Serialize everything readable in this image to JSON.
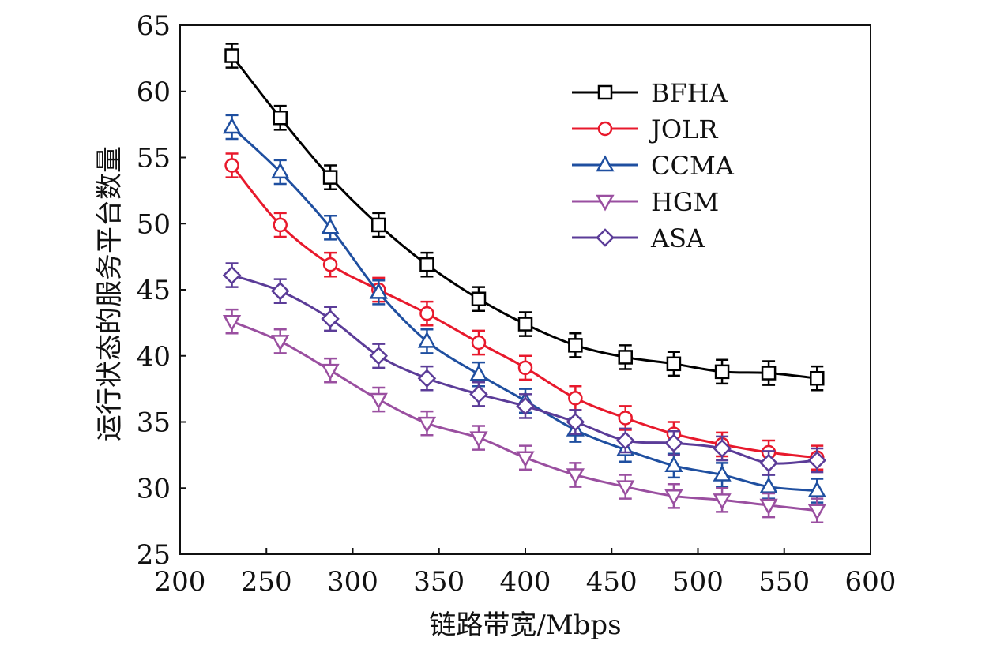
{
  "chart_data": {
    "type": "line",
    "title": "",
    "xlabel": "链路带宽/Mbps",
    "ylabel": "运行状态的服务平台数量",
    "xlim": [
      200,
      600
    ],
    "ylim": [
      25,
      65
    ],
    "xticks": [
      "200",
      "250",
      "300",
      "350",
      "400",
      "450",
      "500",
      "550",
      "600"
    ],
    "yticks": [
      "25",
      "30",
      "35",
      "40",
      "45",
      "50",
      "55",
      "60",
      "65"
    ],
    "grid": false,
    "legend_position": "top-right",
    "x": [
      230,
      258,
      287,
      315,
      343,
      373,
      400,
      429,
      458,
      486,
      514,
      541,
      569
    ],
    "series": [
      {
        "name": "BFHA",
        "color": "#000000",
        "marker": "square",
        "values": [
          62.7,
          58.0,
          53.5,
          49.9,
          46.9,
          44.3,
          42.4,
          40.8,
          39.9,
          39.4,
          38.8,
          38.7,
          38.3
        ],
        "error": [
          0.9,
          0.9,
          0.9,
          0.9,
          0.9,
          0.9,
          0.9,
          0.9,
          0.9,
          0.9,
          0.9,
          0.9,
          0.9
        ]
      },
      {
        "name": "JOLR",
        "color": "#e8192c",
        "marker": "circle",
        "values": [
          54.4,
          49.9,
          46.9,
          45.0,
          43.2,
          41.0,
          39.1,
          36.8,
          35.3,
          34.1,
          33.3,
          32.7,
          32.3
        ],
        "error": [
          0.9,
          0.9,
          0.9,
          0.9,
          0.9,
          0.9,
          0.9,
          0.9,
          0.9,
          0.9,
          0.9,
          0.9,
          0.9
        ]
      },
      {
        "name": "CCMA",
        "color": "#1f4fa0",
        "marker": "triangle-up",
        "values": [
          57.3,
          53.9,
          49.7,
          44.8,
          41.1,
          38.6,
          36.6,
          34.4,
          32.9,
          31.7,
          31.0,
          30.1,
          29.8
        ],
        "error": [
          0.9,
          0.9,
          0.9,
          0.9,
          0.9,
          0.9,
          0.9,
          0.9,
          0.9,
          0.9,
          0.9,
          0.9,
          0.9
        ]
      },
      {
        "name": "HGM",
        "color": "#9a4fa0",
        "marker": "triangle-down",
        "values": [
          42.6,
          41.1,
          38.9,
          36.7,
          34.9,
          33.8,
          32.3,
          31.0,
          30.1,
          29.4,
          29.1,
          28.7,
          28.3
        ],
        "error": [
          0.9,
          0.9,
          0.9,
          0.9,
          0.9,
          0.9,
          0.9,
          0.9,
          0.9,
          0.9,
          0.9,
          0.9,
          0.9
        ]
      },
      {
        "name": "ASA",
        "color": "#5b3c98",
        "marker": "diamond",
        "values": [
          46.1,
          44.9,
          42.8,
          40.0,
          38.3,
          37.1,
          36.2,
          35.0,
          33.6,
          33.4,
          33.0,
          31.9,
          32.1
        ],
        "error": [
          0.9,
          0.9,
          0.9,
          0.9,
          0.9,
          0.9,
          0.9,
          0.9,
          0.9,
          0.9,
          0.9,
          0.9,
          0.9
        ]
      }
    ]
  }
}
